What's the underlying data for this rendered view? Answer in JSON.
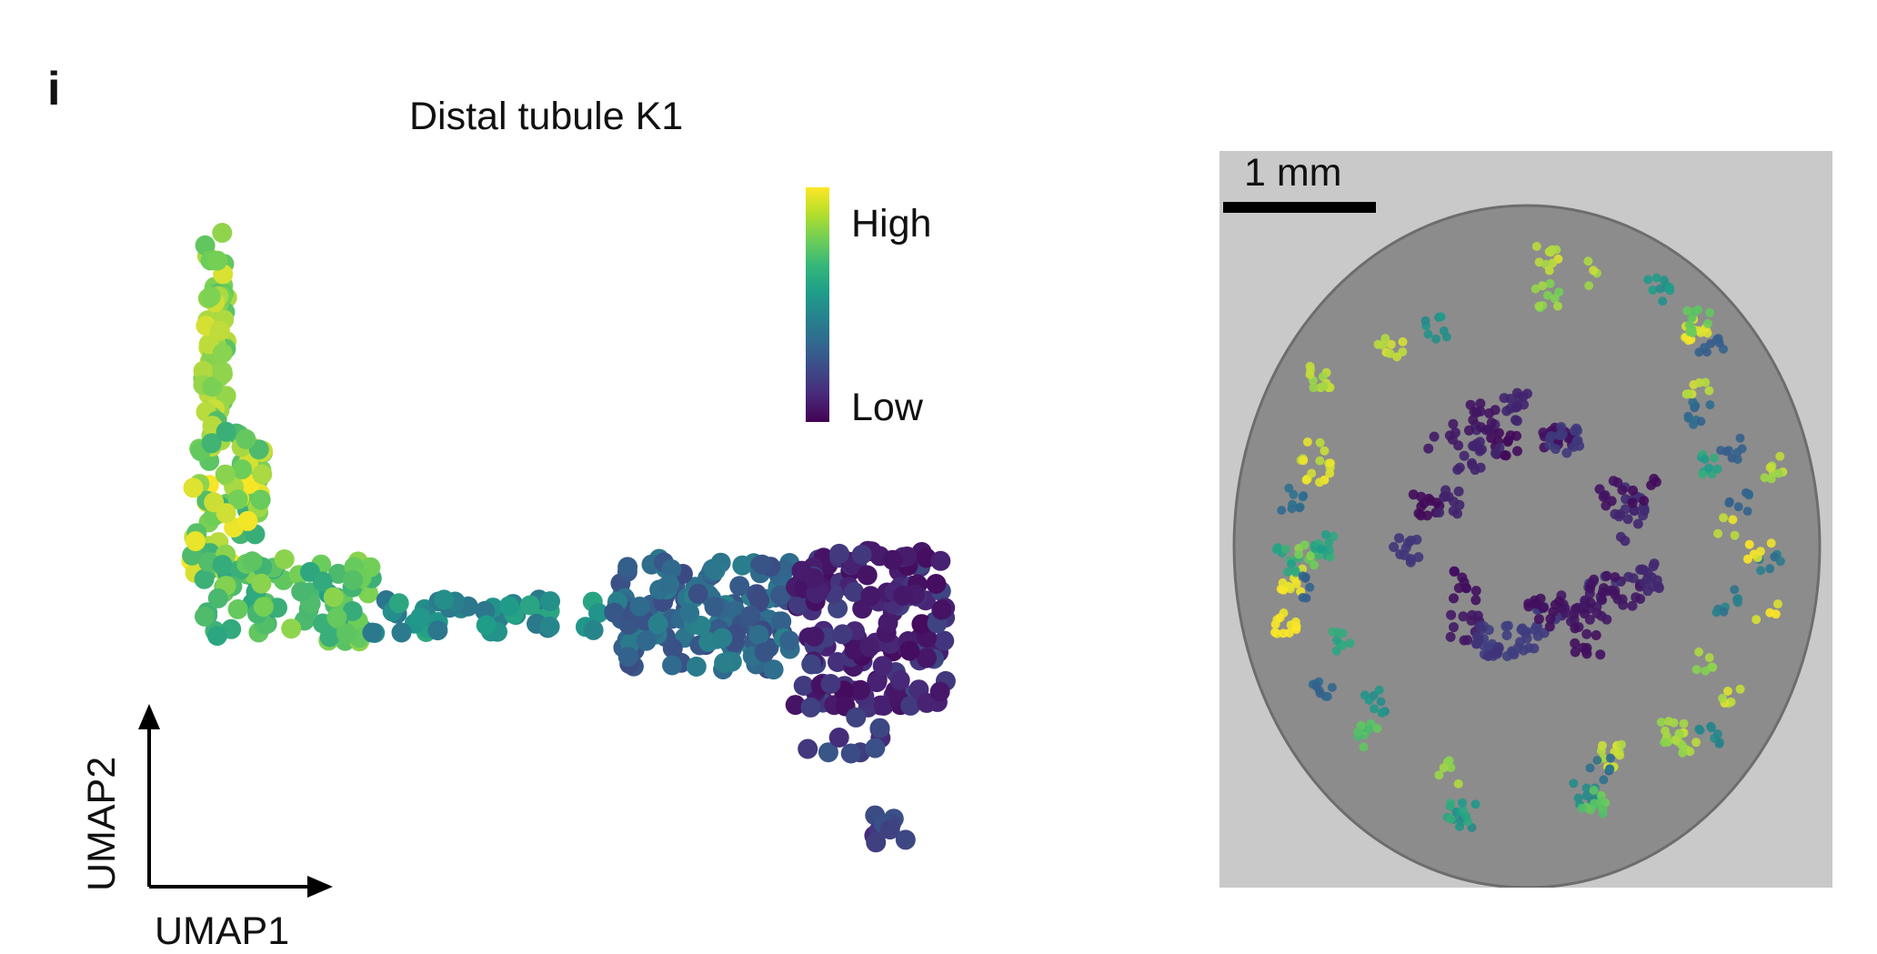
{
  "panel_label": "i",
  "chart_data": [
    {
      "type": "scatter",
      "title": "Distal tubule K1",
      "xlabel": "UMAP1",
      "ylabel": "UMAP2",
      "colorbar": {
        "high_label": "High",
        "low_label": "Low",
        "colormap": [
          "#fde725",
          "#6ece58",
          "#1f9e89",
          "#31688e",
          "#482878",
          "#440154"
        ]
      },
      "clusters": [
        {
          "x_range": [
            1.2,
            1.6
          ],
          "y_range": [
            5.2,
            9.6
          ],
          "n": 55,
          "value_range": [
            0.75,
            0.95
          ]
        },
        {
          "x_range": [
            1.0,
            2.2
          ],
          "y_range": [
            2.2,
            5.6
          ],
          "n": 90,
          "value_range": [
            0.65,
            1.0
          ]
        },
        {
          "x_range": [
            1.2,
            4.0
          ],
          "y_range": [
            0.8,
            2.6
          ],
          "n": 80,
          "value_range": [
            0.6,
            0.85
          ]
        },
        {
          "x_range": [
            4.0,
            8.0
          ],
          "y_range": [
            1.0,
            1.8
          ],
          "n": 45,
          "value_range": [
            0.45,
            0.65
          ]
        },
        {
          "x_range": [
            8.0,
            11.0
          ],
          "y_range": [
            0.2,
            2.6
          ],
          "n": 140,
          "value_range": [
            0.3,
            0.5
          ]
        },
        {
          "x_range": [
            11.0,
            13.5
          ],
          "y_range": [
            -0.6,
            2.8
          ],
          "n": 160,
          "value_range": [
            0.05,
            0.3
          ]
        },
        {
          "x_range": [
            11.0,
            12.5
          ],
          "y_range": [
            -1.6,
            -0.6
          ],
          "n": 10,
          "value_range": [
            0.2,
            0.35
          ]
        },
        {
          "x_range": [
            12.3,
            12.9
          ],
          "y_range": [
            -3.6,
            -2.9
          ],
          "n": 10,
          "value_range": [
            0.2,
            0.35
          ]
        }
      ],
      "grid": false,
      "legend": "top-right"
    },
    {
      "type": "spatial",
      "scale_bar_label": "1 mm",
      "background_color": "#8c8c8c",
      "colormap": [
        "#fde725",
        "#6ece58",
        "#1f9e89",
        "#31688e",
        "#3e4989",
        "#440154"
      ]
    }
  ]
}
